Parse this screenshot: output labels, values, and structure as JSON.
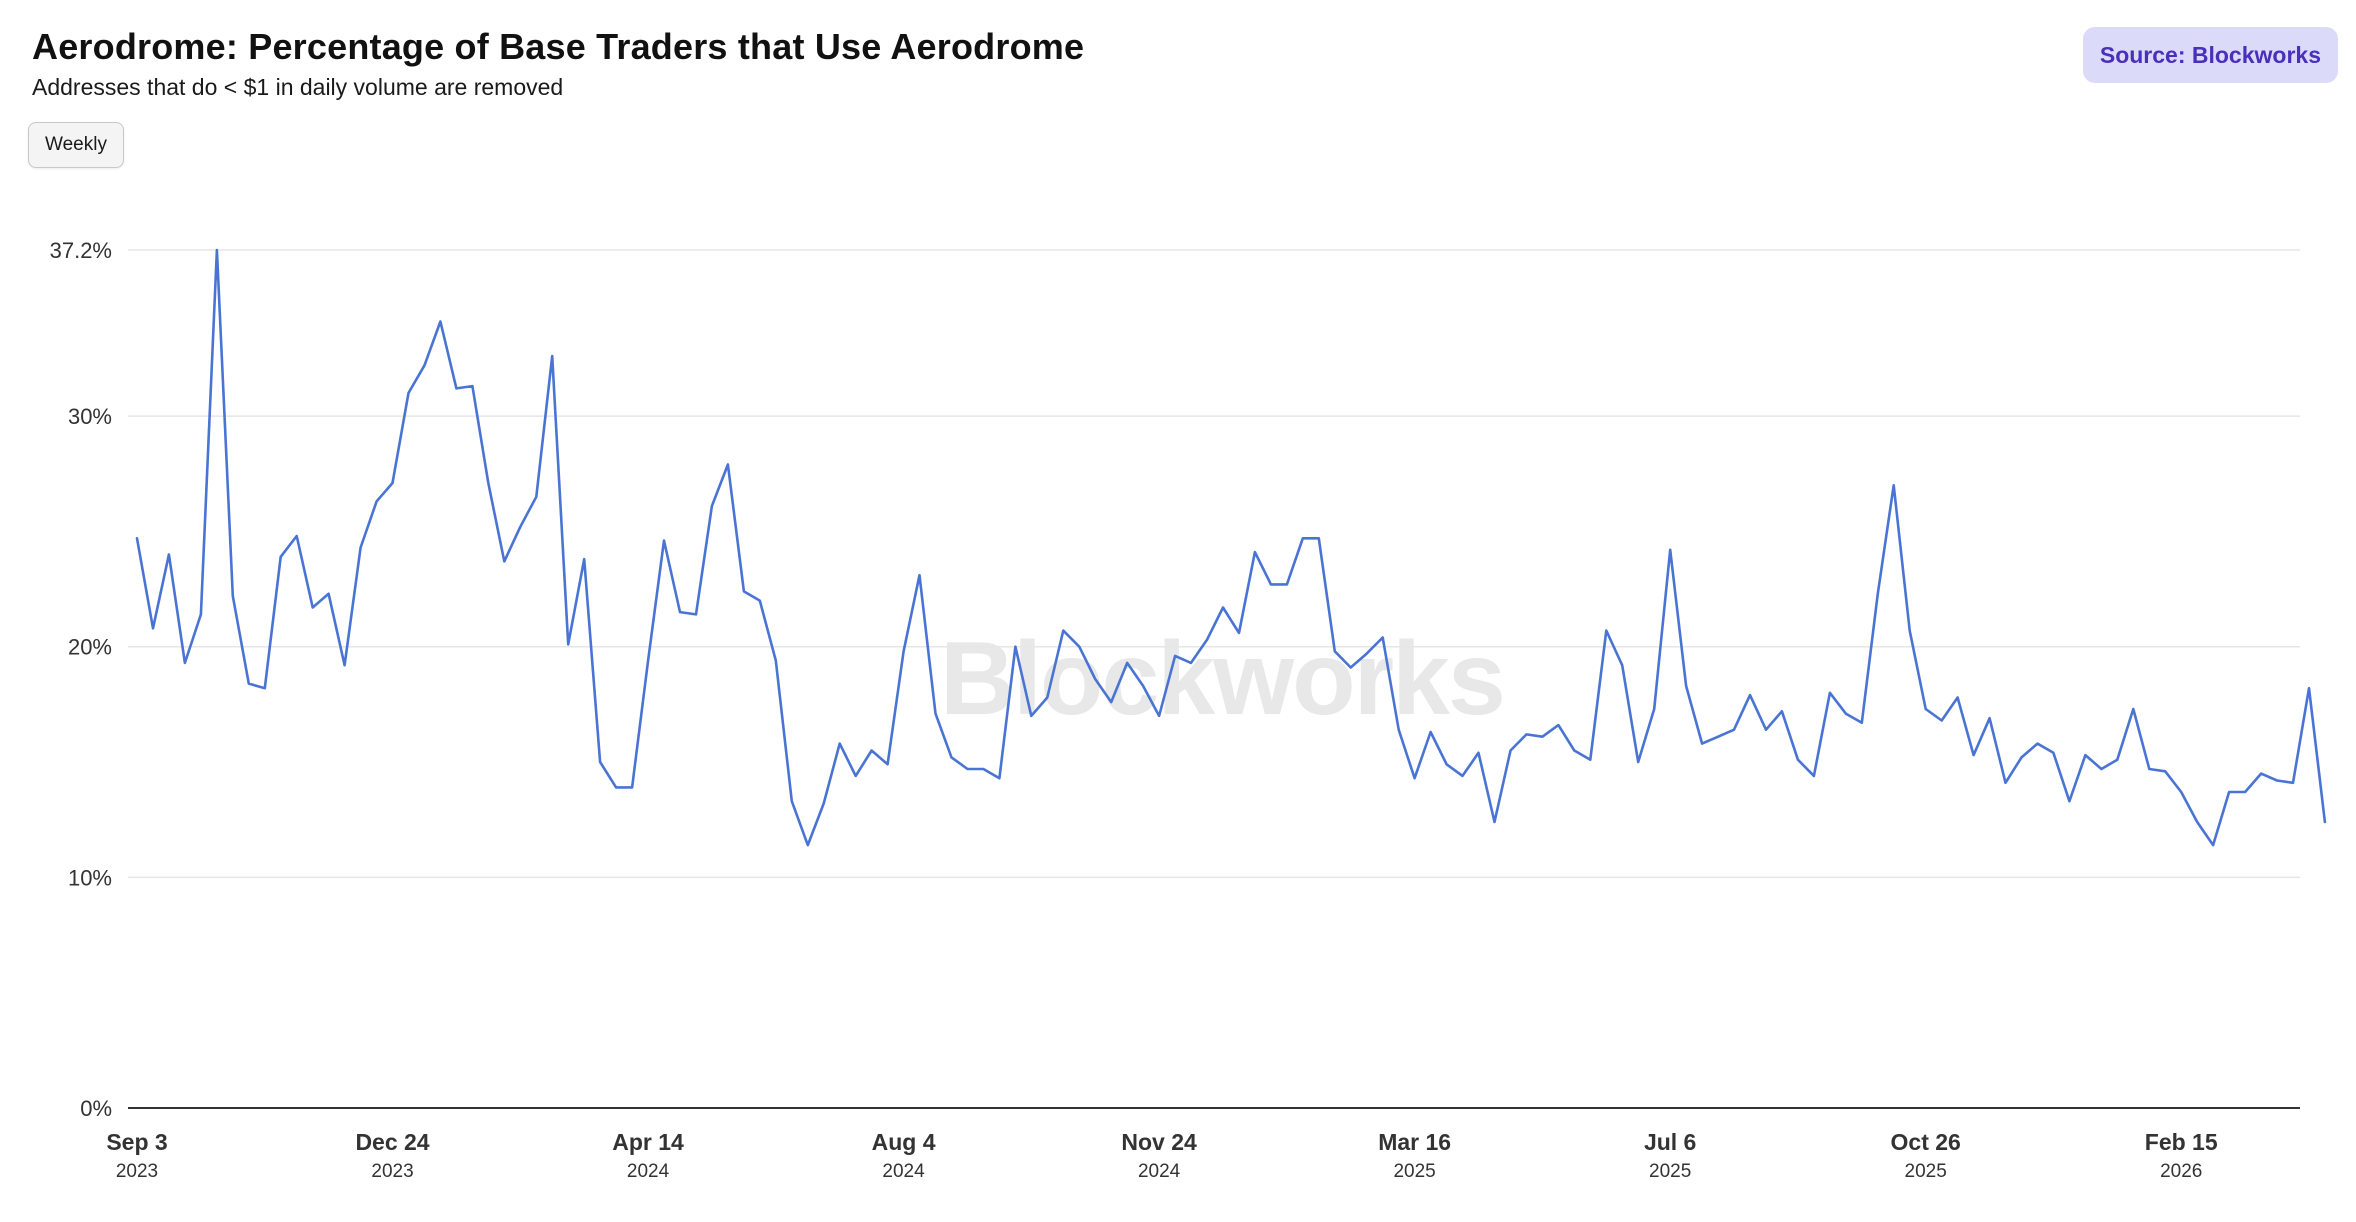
{
  "header": {
    "title": "Aerodrome: Percentage of Base Traders that Use Aerodrome",
    "subtitle": "Addresses that do < $1 in daily volume are removed",
    "source_label": "Source: Blockworks",
    "period_button": "Weekly",
    "watermark": "Blockworks"
  },
  "colors": {
    "line": "#4a74d4",
    "grid": "#e6e6e6",
    "axis": "#333333",
    "source_bg": "#dcdaf9",
    "source_text": "#4a2fbd"
  },
  "chart_data": {
    "type": "line",
    "title": "Aerodrome: Percentage of Base Traders that Use Aerodrome",
    "subtitle": "Addresses that do < $1 in daily volume are removed",
    "xlabel": "",
    "ylabel": "",
    "y_unit": "%",
    "ylim": [
      0,
      37.2
    ],
    "y_ticks": [
      {
        "value": 0,
        "label": "0%"
      },
      {
        "value": 10,
        "label": "10%"
      },
      {
        "value": 20,
        "label": "20%"
      },
      {
        "value": 30,
        "label": "30%"
      },
      {
        "value": 37.2,
        "label": "37.2%"
      }
    ],
    "x_start": "2023-09-03",
    "x_end": "2026-04-05",
    "x_ticks": [
      {
        "date": "2023-09-03",
        "label": "Sep 3",
        "year": "2023"
      },
      {
        "date": "2023-12-24",
        "label": "Dec 24",
        "year": "2023"
      },
      {
        "date": "2024-04-14",
        "label": "Apr 14",
        "year": "2024"
      },
      {
        "date": "2024-08-04",
        "label": "Aug 4",
        "year": "2024"
      },
      {
        "date": "2024-11-24",
        "label": "Nov 24",
        "year": "2024"
      },
      {
        "date": "2025-03-16",
        "label": "Mar 16",
        "year": "2025"
      },
      {
        "date": "2025-07-06",
        "label": "Jul 6",
        "year": "2025"
      },
      {
        "date": "2025-10-26",
        "label": "Oct 26",
        "year": "2025"
      },
      {
        "date": "2026-02-15",
        "label": "Feb 15",
        "year": "2026"
      }
    ],
    "grid": true,
    "legend": "none",
    "series": [
      {
        "frequency": "weekly",
        "values": [
          24.7,
          20.8,
          24.0,
          19.3,
          21.4,
          37.2,
          22.2,
          18.4,
          18.2,
          23.9,
          24.8,
          21.7,
          22.3,
          19.2,
          24.3,
          26.3,
          27.1,
          31.0,
          32.2,
          34.1,
          31.2,
          31.3,
          27.1,
          23.7,
          25.2,
          26.5,
          32.6,
          20.1,
          23.8,
          15.0,
          13.9,
          13.9,
          19.4,
          24.6,
          21.5,
          21.4,
          26.1,
          27.9,
          22.4,
          22.0,
          19.4,
          13.3,
          11.4,
          13.2,
          15.8,
          14.4,
          15.5,
          14.9,
          19.8,
          23.1,
          17.1,
          15.2,
          14.7,
          14.7,
          14.3,
          20.0,
          17.0,
          17.8,
          20.7,
          20.0,
          18.6,
          17.6,
          19.3,
          18.3,
          17.0,
          19.6,
          19.3,
          20.3,
          21.7,
          20.6,
          24.1,
          22.7,
          22.7,
          24.7,
          24.7,
          19.8,
          19.1,
          19.7,
          20.4,
          16.4,
          14.3,
          16.3,
          14.9,
          14.4,
          15.4,
          12.4,
          15.5,
          16.2,
          16.1,
          16.6,
          15.5,
          15.1,
          20.7,
          19.2,
          15.0,
          17.3,
          24.2,
          18.3,
          15.8,
          16.1,
          16.4,
          17.9,
          16.4,
          17.2,
          15.1,
          14.4,
          18.0,
          17.1,
          16.7,
          22.3,
          27.0,
          20.7,
          17.3,
          16.8,
          17.8,
          15.3,
          16.9,
          14.1,
          15.2,
          15.8,
          15.4,
          13.3,
          15.3,
          14.7,
          15.1,
          17.3,
          14.7,
          14.6,
          13.7,
          12.4,
          11.4,
          13.7,
          13.7,
          14.5,
          14.2,
          14.1,
          18.2,
          12.4
        ]
      }
    ]
  }
}
